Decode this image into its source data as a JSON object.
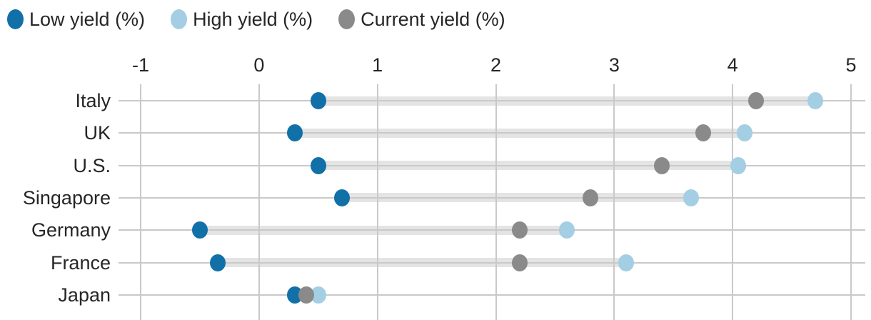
{
  "chart_data": {
    "type": "scatter",
    "variant": "dumbbell-dot-plot",
    "orientation": "horizontal",
    "title": "",
    "categories": [
      "Italy",
      "UK",
      "U.S.",
      "Singapore",
      "Germany",
      "France",
      "Japan"
    ],
    "series": [
      {
        "name": "Low yield (%)",
        "color": "#1170a8",
        "values": [
          0.5,
          0.3,
          0.5,
          0.7,
          -0.5,
          -0.35,
          0.3
        ]
      },
      {
        "name": "High yield (%)",
        "color": "#a3cee4",
        "values": [
          4.7,
          4.1,
          4.05,
          3.65,
          2.6,
          3.1,
          0.5
        ]
      },
      {
        "name": "Current yield (%)",
        "color": "#8a8a8a",
        "values": [
          4.2,
          3.75,
          3.4,
          2.8,
          2.2,
          2.2,
          0.4
        ]
      }
    ],
    "x_axis": {
      "min": -1,
      "max": 5,
      "ticks": [
        -1,
        0,
        1,
        2,
        3,
        4,
        5
      ],
      "position": "top",
      "label": ""
    },
    "y_axis": {
      "label": ""
    },
    "grid": {
      "vertical": true,
      "horizontal_row_lines": true
    },
    "legend_position": "top-left",
    "connector_band": {
      "between": [
        "Low yield (%)",
        "High yield (%)"
      ],
      "color": "#e4e4e4"
    },
    "colors": {
      "gridline": "#c9c9c9",
      "text": "#262626",
      "background": "#ffffff"
    }
  }
}
